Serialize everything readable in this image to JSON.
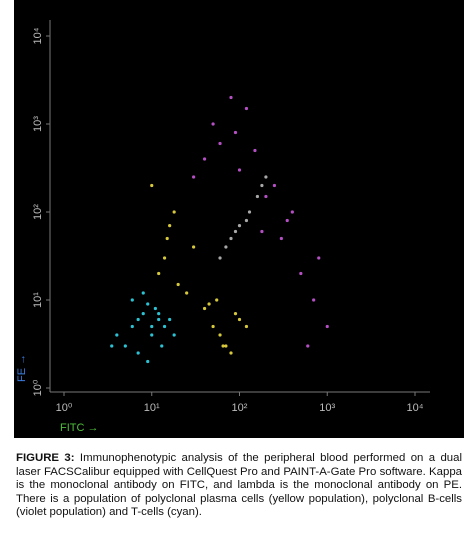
{
  "chart_data": {
    "type": "scatter",
    "log_x": true,
    "log_y": true,
    "xlabel": "FITC →",
    "ylabel": "FE →",
    "xlim": [
      1,
      10000
    ],
    "ylim": [
      1,
      10000
    ],
    "xticks": [
      {
        "value": 1,
        "label": "10⁰"
      },
      {
        "value": 10,
        "label": "10¹"
      },
      {
        "value": 100,
        "label": "10²"
      },
      {
        "value": 1000,
        "label": "10³"
      },
      {
        "value": 10000,
        "label": "10⁴"
      }
    ],
    "yticks": [
      {
        "value": 1,
        "label": "10⁰"
      },
      {
        "value": 10,
        "label": "10¹"
      },
      {
        "value": 100,
        "label": "10²"
      },
      {
        "value": 1000,
        "label": "10³"
      },
      {
        "value": 10000,
        "label": "10⁴"
      }
    ],
    "series": [
      {
        "color": "#2bc3d4",
        "x": [
          6,
          8,
          10,
          12,
          5,
          9,
          14,
          7,
          11,
          4,
          16,
          8,
          13,
          6,
          10,
          18,
          9,
          7,
          12,
          3.5
        ],
        "values": [
          5,
          7,
          4,
          6,
          3,
          9,
          5,
          2.5,
          8,
          4,
          6,
          12,
          3,
          10,
          5,
          4,
          2,
          6,
          7,
          3
        ]
      },
      {
        "color": "#d6c83a",
        "x": [
          50,
          70,
          90,
          60,
          100,
          40,
          80,
          120,
          55,
          65,
          12,
          15,
          18,
          10,
          14,
          20,
          16,
          25,
          30,
          45
        ],
        "values": [
          5,
          3,
          7,
          4,
          6,
          8,
          2.5,
          5,
          10,
          3,
          20,
          50,
          100,
          200,
          30,
          15,
          70,
          12,
          40,
          9
        ]
      },
      {
        "color": "#b44fc4",
        "x": [
          60,
          100,
          200,
          400,
          800,
          150,
          300,
          500,
          50,
          700,
          250,
          90,
          1000,
          350,
          120,
          40,
          600,
          180,
          80,
          30
        ],
        "values": [
          600,
          300,
          150,
          100,
          30,
          500,
          50,
          20,
          1000,
          10,
          200,
          800,
          5,
          80,
          1500,
          400,
          3,
          60,
          2000,
          250
        ]
      },
      {
        "color": "#a8a8a8",
        "x": [
          60,
          80,
          100,
          130,
          160,
          200,
          70,
          120,
          180,
          90
        ],
        "values": [
          30,
          50,
          70,
          100,
          150,
          250,
          40,
          80,
          200,
          60
        ]
      }
    ]
  },
  "caption": {
    "label": "FIGURE 3:",
    "text": "Immunophenotypic analysis of the peripheral blood performed on a dual laser FACSCalibur equipped with CellQuest Pro and PAINT-A-Gate Pro software. Kappa is the monoclonal antibody on FITC, and lambda is the monoclonal antibody on PE. There is a population of polyclonal plasma cells (yellow population), polyclonal B-cells (violet population) and T-cells (cyan)."
  }
}
